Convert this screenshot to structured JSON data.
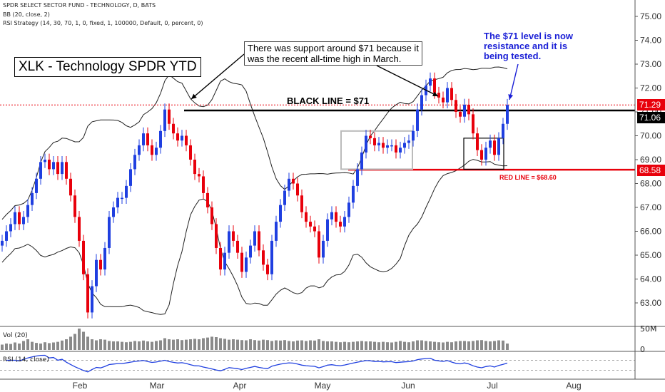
{
  "header": {
    "symbol_line": "SPDR SELECT SECTOR FUND - TECHNOLOGY, D, BATS",
    "bb_line": "BB (20, close, 2)",
    "rsi_strategy_line": "RSI Strategy (14, 30, 70, 1, 0, fixed, 1, 100000, Default, 0, percent, 0)"
  },
  "annotations": {
    "title": "XLK - Technology SPDR YTD",
    "support_note_1": "There was support around $71 because it",
    "support_note_2": "was the recent all-time high in March.",
    "black_line_label": "BLACK LINE = $71",
    "red_line_label": "RED LINE = $68.60",
    "blue_note_1": "The $71 level is now",
    "blue_note_2": "resistance and it is",
    "blue_note_3": "being tested."
  },
  "badges": {
    "last_price": "71.29",
    "black_line": "71.06",
    "red_line": "68.58"
  },
  "subpanels": {
    "volume_label": "Vol (20)",
    "volume_ticks": [
      "50M",
      "0"
    ],
    "rsi_label": "RSI (14, close)"
  },
  "colors": {
    "up": "#1f3fe0",
    "down": "#e8000b",
    "black_line": "#000000",
    "red_line": "#e8000b",
    "bollinger": "#222222",
    "rsi": "#1f3fe0",
    "price_badge": "#e8000b",
    "black_badge": "#000000",
    "red_badge": "#e8000b"
  },
  "chart_data": {
    "type": "candlestick",
    "title": "XLK - Technology SPDR YTD",
    "y_ticks": [
      63,
      64,
      65,
      66,
      67,
      68,
      69,
      70,
      71,
      72,
      73,
      74,
      75
    ],
    "ylim": [
      62,
      75.5
    ],
    "x_ticks": [
      "Feb",
      "Mar",
      "Apr",
      "May",
      "Jun",
      "Jul",
      "Aug"
    ],
    "horizontal_lines": [
      {
        "name": "BLACK LINE",
        "value": 71.06
      },
      {
        "name": "RED LINE",
        "value": 68.58
      }
    ],
    "last_price": 71.29,
    "closes": [
      65.6,
      66.0,
      66.3,
      66.8,
      66.3,
      66.6,
      67.1,
      67.6,
      68.2,
      68.9,
      69.0,
      68.6,
      68.9,
      68.4,
      68.9,
      68.2,
      67.5,
      66.6,
      65.6,
      64.2,
      62.6,
      63.7,
      64.8,
      64.4,
      65.3,
      66.6,
      67.0,
      67.4,
      67.4,
      67.9,
      68.6,
      69.2,
      69.6,
      70.1,
      69.6,
      69.2,
      69.5,
      70.2,
      71.1,
      70.5,
      70.1,
      69.8,
      70.0,
      69.6,
      69.0,
      68.4,
      68.3,
      67.6,
      67.0,
      66.3,
      65.3,
      64.4,
      65.1,
      66.0,
      65.6,
      65.1,
      64.3,
      64.9,
      65.4,
      66.0,
      65.2,
      64.6,
      64.2,
      65.6,
      66.4,
      67.1,
      67.7,
      68.2,
      68.0,
      67.5,
      66.8,
      66.4,
      66.2,
      66.0,
      64.9,
      65.6,
      66.5,
      66.8,
      66.4,
      66.2,
      66.6,
      67.2,
      67.9,
      68.6,
      69.3,
      70.0,
      69.9,
      69.6,
      69.7,
      69.5,
      69.6,
      69.6,
      69.3,
      69.5,
      69.7,
      69.8,
      70.2,
      71.1,
      71.7,
      72.1,
      72.4,
      71.8,
      71.6,
      71.4,
      72.0,
      71.5,
      71.0,
      70.8,
      71.3,
      70.9,
      70.1,
      69.4,
      69.0,
      69.5,
      69.8,
      69.2,
      69.9,
      70.5,
      71.29
    ],
    "volume_relative": [
      0.25,
      0.3,
      0.28,
      0.35,
      0.3,
      0.42,
      0.5,
      0.38,
      0.33,
      0.3,
      0.36,
      0.32,
      0.35,
      0.38,
      0.44,
      0.5,
      0.62,
      0.75,
      1.0,
      0.85,
      0.62,
      0.5,
      0.45,
      0.5,
      0.48,
      0.42,
      0.4,
      0.4,
      0.38,
      0.36,
      0.38,
      0.42,
      0.4,
      0.44,
      0.4,
      0.38,
      0.42,
      0.45,
      0.55,
      0.5,
      0.48,
      0.5,
      0.46,
      0.48,
      0.5,
      0.52,
      0.5,
      0.55,
      0.58,
      0.62,
      0.6,
      0.55,
      0.52,
      0.48,
      0.5,
      0.48,
      0.46,
      0.45,
      0.5,
      0.46,
      0.44,
      0.48,
      0.46,
      0.42,
      0.45,
      0.44,
      0.46,
      0.42,
      0.4,
      0.44,
      0.45,
      0.42,
      0.45,
      0.44,
      0.5,
      0.42,
      0.4,
      0.4,
      0.38,
      0.36,
      0.38,
      0.36,
      0.38,
      0.4,
      0.42,
      0.4,
      0.4,
      0.38,
      0.36,
      0.38,
      0.36,
      0.35,
      0.38,
      0.42,
      0.38,
      0.36,
      0.4,
      0.45,
      0.45,
      0.42,
      0.4,
      0.38,
      0.36,
      0.35,
      0.38,
      0.36,
      0.4,
      0.42,
      0.42,
      0.4,
      0.42,
      0.45,
      0.46,
      0.42,
      0.4,
      0.42,
      0.45,
      0.44,
      0.3
    ],
    "rsi_note": "RSI (14) line shown in lower pane"
  }
}
